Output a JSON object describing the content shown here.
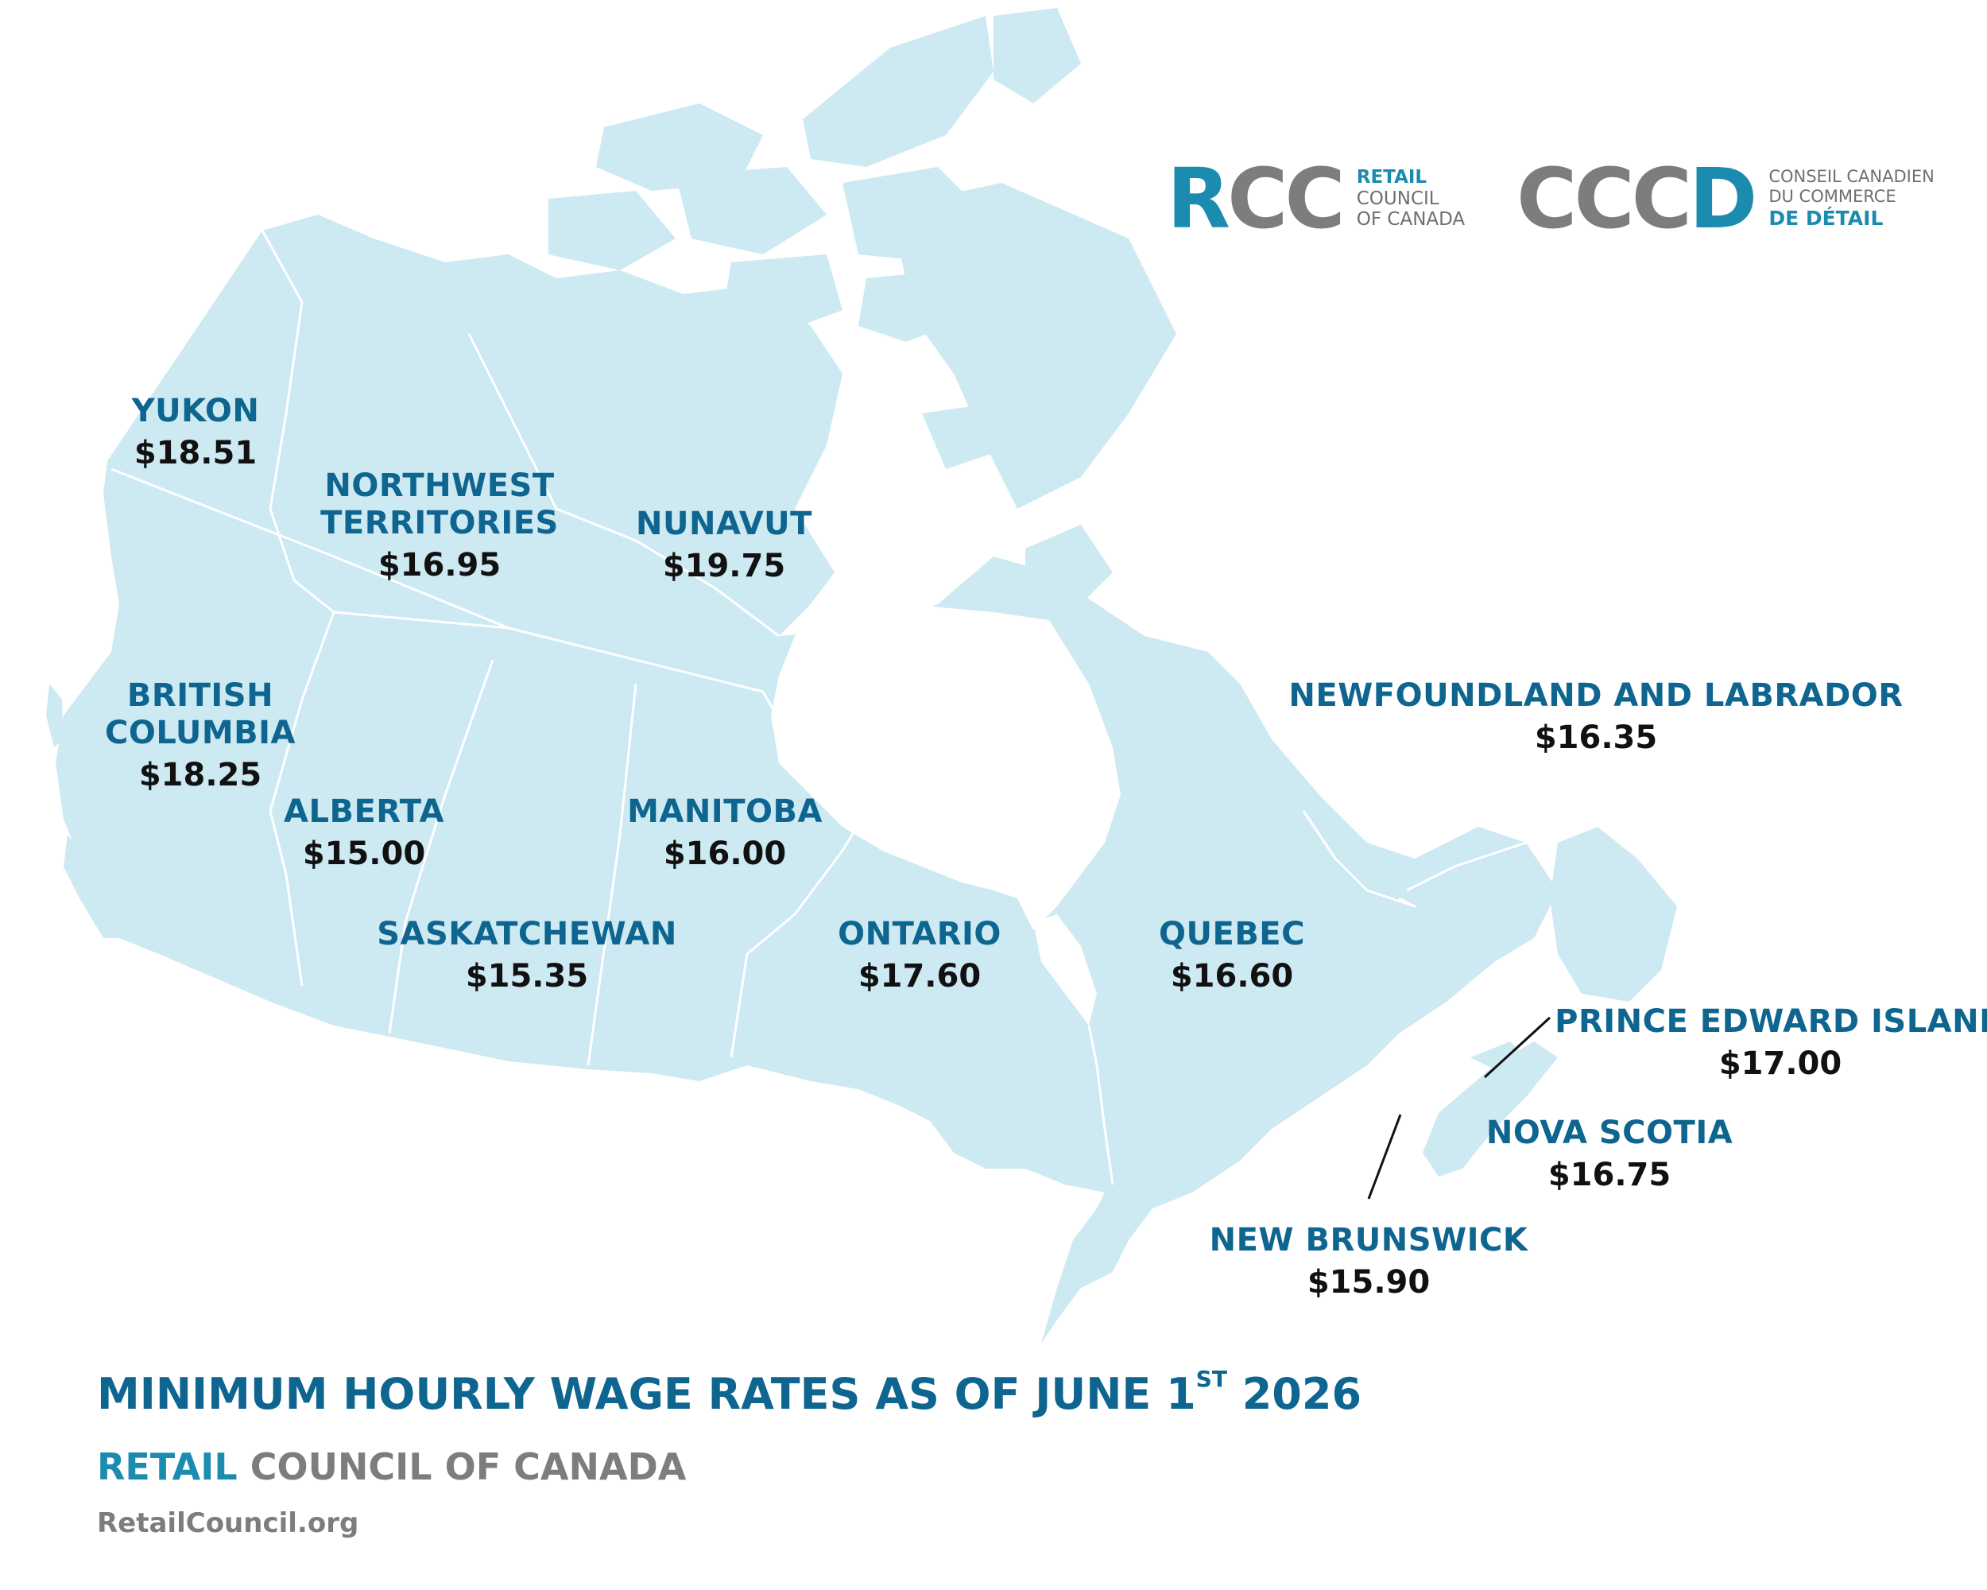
{
  "logos": {
    "rcc": {
      "big_part1": "R",
      "big_part2": "CC",
      "line1": "RETAIL",
      "line2": "COUNCIL",
      "line3": "OF CANADA"
    },
    "cccd": {
      "big_part1": "CCC",
      "big_part2": "D",
      "line1": "CONSEIL CANADIEN",
      "line2": "DU COMMERCE",
      "line3": "DE DÉTAIL"
    }
  },
  "provinces": [
    {
      "name": "YUKON",
      "rate": "$18.51"
    },
    {
      "name": "NORTHWEST",
      "name2": "TERRITORIES",
      "rate": "$16.95"
    },
    {
      "name": "NUNAVUT",
      "rate": "$19.75"
    },
    {
      "name": "BRITISH",
      "name2": "COLUMBIA",
      "rate": "$18.25"
    },
    {
      "name": "ALBERTA",
      "rate": "$15.00"
    },
    {
      "name": "MANITOBA",
      "rate": "$16.00"
    },
    {
      "name": "SASKATCHEWAN",
      "rate": "$15.35"
    },
    {
      "name": "ONTARIO",
      "rate": "$17.60"
    },
    {
      "name": "QUEBEC",
      "rate": "$16.60"
    },
    {
      "name": "NEWFOUNDLAND AND LABRADOR",
      "rate": "$16.35"
    },
    {
      "name": "PRINCE EDWARD ISLAND",
      "rate": "$17.00"
    },
    {
      "name": "NOVA SCOTIA",
      "rate": "$16.75"
    },
    {
      "name": "NEW BRUNSWICK",
      "rate": "$15.90"
    }
  ],
  "footer": {
    "title_main": "MINIMUM HOURLY WAGE RATES AS OF JUNE 1",
    "title_sup": "ST",
    "title_year": " 2026",
    "org_part1": "RETAIL",
    "org_part2": " COUNCIL OF CANADA",
    "url": "RetailCouncil.org"
  },
  "colors": {
    "land": "#cde9f2",
    "label_blue": "#0e6590",
    "brand_blue": "#1c8bb0",
    "brand_grey": "#7d7d7d"
  }
}
